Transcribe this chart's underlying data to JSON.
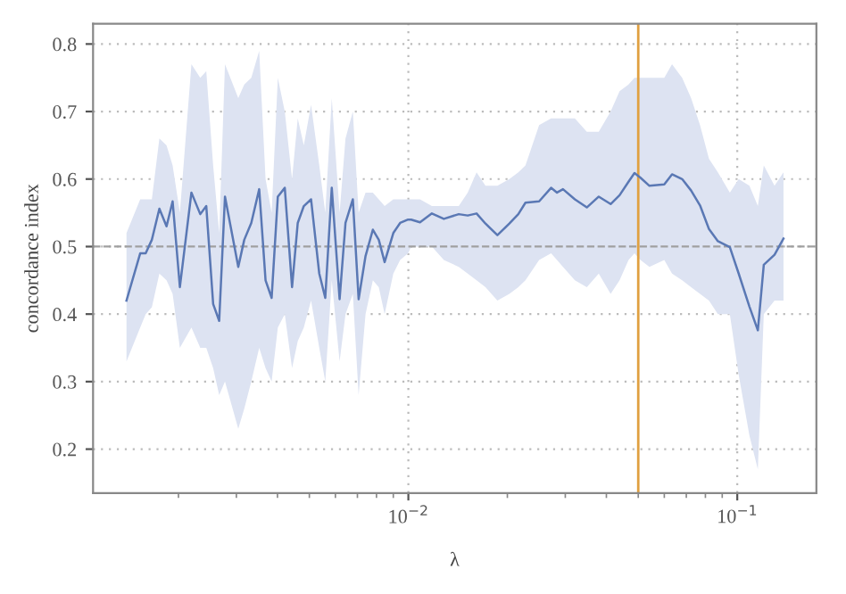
{
  "chart_data": {
    "type": "line",
    "xlabel": "λ",
    "ylabel": "concordance index",
    "log": "x",
    "grid": true,
    "marker": "none",
    "line_style": "solid",
    "xlim": [
      0.0011,
      0.174
    ],
    "ylim": [
      0.135,
      0.83
    ],
    "xticks": [
      {
        "value": 0.01,
        "label": "10$^{−2}$"
      },
      {
        "value": 0.1,
        "label": "10$^{−1}$"
      }
    ],
    "yticks": [
      0.2,
      0.3,
      0.4,
      0.5,
      0.6,
      0.7,
      0.8
    ],
    "ref_lines": [
      {
        "axis": "y",
        "value": 0.5,
        "label": null,
        "color": "#a0a0a0",
        "line_style": "dashed"
      },
      {
        "axis": "x",
        "value": 0.05,
        "label": null,
        "color": "#e0a040",
        "line_style": "solid"
      }
    ],
    "series": [
      {
        "color": "#5a78b4",
        "x": [
          0.00139,
          0.00153,
          0.00159,
          0.00166,
          0.00175,
          0.00184,
          0.00192,
          0.00202,
          0.00219,
          0.00233,
          0.00243,
          0.00255,
          0.00266,
          0.00277,
          0.00304,
          0.00317,
          0.00333,
          0.00352,
          0.00368,
          0.00384,
          0.00401,
          0.00421,
          0.00443,
          0.00461,
          0.00481,
          0.00506,
          0.00536,
          0.00559,
          0.00585,
          0.00618,
          0.00644,
          0.00678,
          0.00706,
          0.00741,
          0.0078,
          0.00813,
          0.00847,
          0.009,
          0.00944,
          0.00998,
          0.0102,
          0.01085,
          0.01179,
          0.01282,
          0.01423,
          0.01515,
          0.01612,
          0.01716,
          0.01865,
          0.02028,
          0.02159,
          0.0227,
          0.02498,
          0.02716,
          0.02831,
          0.02952,
          0.03208,
          0.03488,
          0.03792,
          0.04121,
          0.04387,
          0.04671,
          0.0487,
          0.05078,
          0.05406,
          0.05999,
          0.06333,
          0.06799,
          0.07238,
          0.07705,
          0.08202,
          0.08732,
          0.09493,
          0.101,
          0.1089,
          0.1155,
          0.1204,
          0.1298,
          0.1382
        ],
        "values": [
          0.42,
          0.49,
          0.49,
          0.51,
          0.556,
          0.53,
          0.567,
          0.44,
          0.58,
          0.548,
          0.56,
          0.415,
          0.39,
          0.574,
          0.47,
          0.51,
          0.535,
          0.585,
          0.45,
          0.424,
          0.574,
          0.587,
          0.44,
          0.535,
          0.56,
          0.57,
          0.46,
          0.424,
          0.587,
          0.422,
          0.535,
          0.57,
          0.422,
          0.486,
          0.525,
          0.51,
          0.477,
          0.52,
          0.535,
          0.54,
          0.54,
          0.536,
          0.549,
          0.541,
          0.548,
          0.546,
          0.549,
          0.534,
          0.517,
          0.534,
          0.548,
          0.565,
          0.567,
          0.587,
          0.58,
          0.585,
          0.57,
          0.558,
          0.574,
          0.563,
          0.576,
          0.596,
          0.609,
          0.602,
          0.59,
          0.592,
          0.607,
          0.6,
          0.583,
          0.561,
          0.526,
          0.508,
          0.499,
          0.46,
          0.411,
          0.376,
          0.473,
          0.488,
          0.512
        ],
        "upper": [
          0.52,
          0.57,
          0.57,
          0.57,
          0.66,
          0.65,
          0.62,
          0.55,
          0.77,
          0.75,
          0.76,
          0.62,
          0.52,
          0.77,
          0.72,
          0.74,
          0.75,
          0.79,
          0.6,
          0.55,
          0.75,
          0.7,
          0.6,
          0.69,
          0.65,
          0.71,
          0.62,
          0.55,
          0.72,
          0.55,
          0.66,
          0.7,
          0.55,
          0.58,
          0.58,
          0.57,
          0.56,
          0.57,
          0.57,
          0.57,
          0.57,
          0.57,
          0.56,
          0.56,
          0.56,
          0.58,
          0.61,
          0.59,
          0.59,
          0.6,
          0.61,
          0.62,
          0.68,
          0.69,
          0.69,
          0.69,
          0.69,
          0.67,
          0.67,
          0.7,
          0.73,
          0.74,
          0.75,
          0.75,
          0.75,
          0.75,
          0.77,
          0.75,
          0.72,
          0.68,
          0.63,
          0.61,
          0.58,
          0.6,
          0.59,
          0.56,
          0.62,
          0.59,
          0.61
        ],
        "lower": [
          0.33,
          0.38,
          0.4,
          0.41,
          0.46,
          0.45,
          0.43,
          0.35,
          0.38,
          0.35,
          0.35,
          0.32,
          0.28,
          0.3,
          0.23,
          0.26,
          0.3,
          0.35,
          0.32,
          0.3,
          0.38,
          0.4,
          0.32,
          0.36,
          0.38,
          0.42,
          0.35,
          0.3,
          0.45,
          0.33,
          0.4,
          0.43,
          0.28,
          0.4,
          0.45,
          0.44,
          0.4,
          0.46,
          0.48,
          0.49,
          0.5,
          0.5,
          0.5,
          0.48,
          0.47,
          0.46,
          0.45,
          0.44,
          0.42,
          0.43,
          0.44,
          0.45,
          0.48,
          0.49,
          0.48,
          0.47,
          0.45,
          0.44,
          0.46,
          0.43,
          0.45,
          0.48,
          0.49,
          0.48,
          0.47,
          0.48,
          0.46,
          0.45,
          0.44,
          0.43,
          0.42,
          0.4,
          0.4,
          0.31,
          0.22,
          0.17,
          0.4,
          0.42,
          0.42
        ]
      }
    ]
  }
}
